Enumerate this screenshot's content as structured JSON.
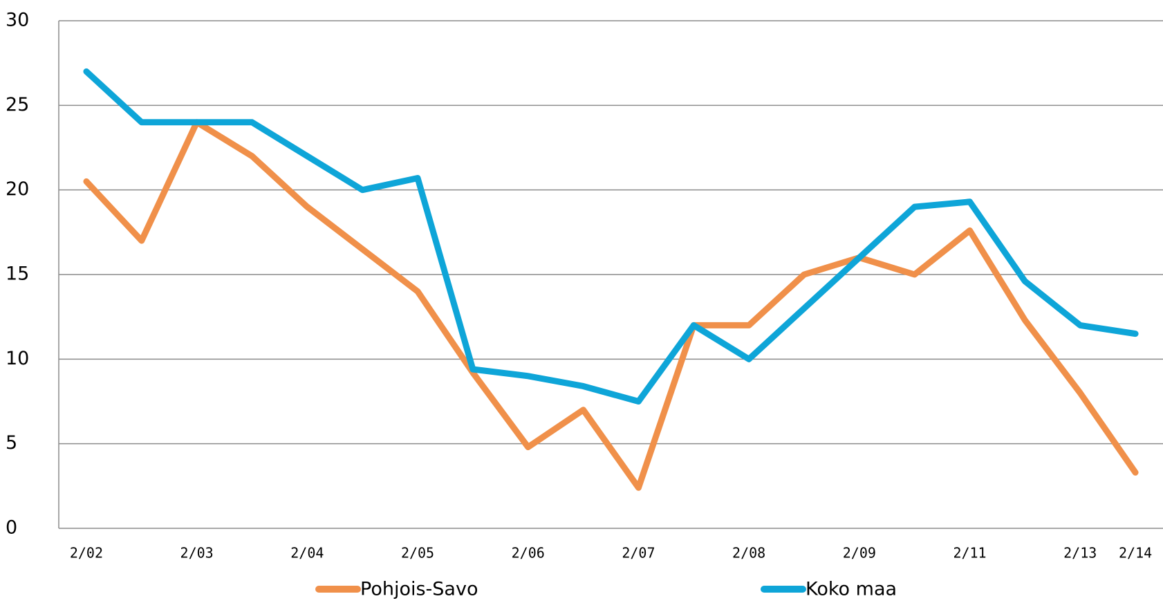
{
  "chart_data": {
    "type": "line",
    "categories": [
      "2/02",
      null,
      "2/03",
      null,
      "2/04",
      null,
      "2/05",
      null,
      "2/06",
      null,
      "2/07",
      null,
      "2/08",
      null,
      "2/09",
      null,
      "2/11",
      null,
      "2/13",
      "2/14"
    ],
    "series": [
      {
        "name": "Pohjois-Savo",
        "color": "#f0904a",
        "values": [
          20.5,
          17,
          24,
          22,
          19,
          16.5,
          14,
          9.2,
          4.8,
          7,
          2.4,
          12,
          12,
          15,
          16,
          15,
          17.6,
          12.3,
          8,
          3.3
        ]
      },
      {
        "name": "Koko maa",
        "color": "#0ea5d8",
        "values": [
          27,
          24,
          24,
          24,
          22,
          20,
          20.7,
          9.4,
          9,
          8.4,
          7.5,
          12,
          10,
          13,
          16,
          19,
          19.3,
          14.6,
          12,
          11.5
        ]
      }
    ],
    "ylim": [
      0,
      30
    ],
    "yticks": [
      0,
      5,
      10,
      15,
      20,
      25,
      30
    ],
    "grid": true
  }
}
